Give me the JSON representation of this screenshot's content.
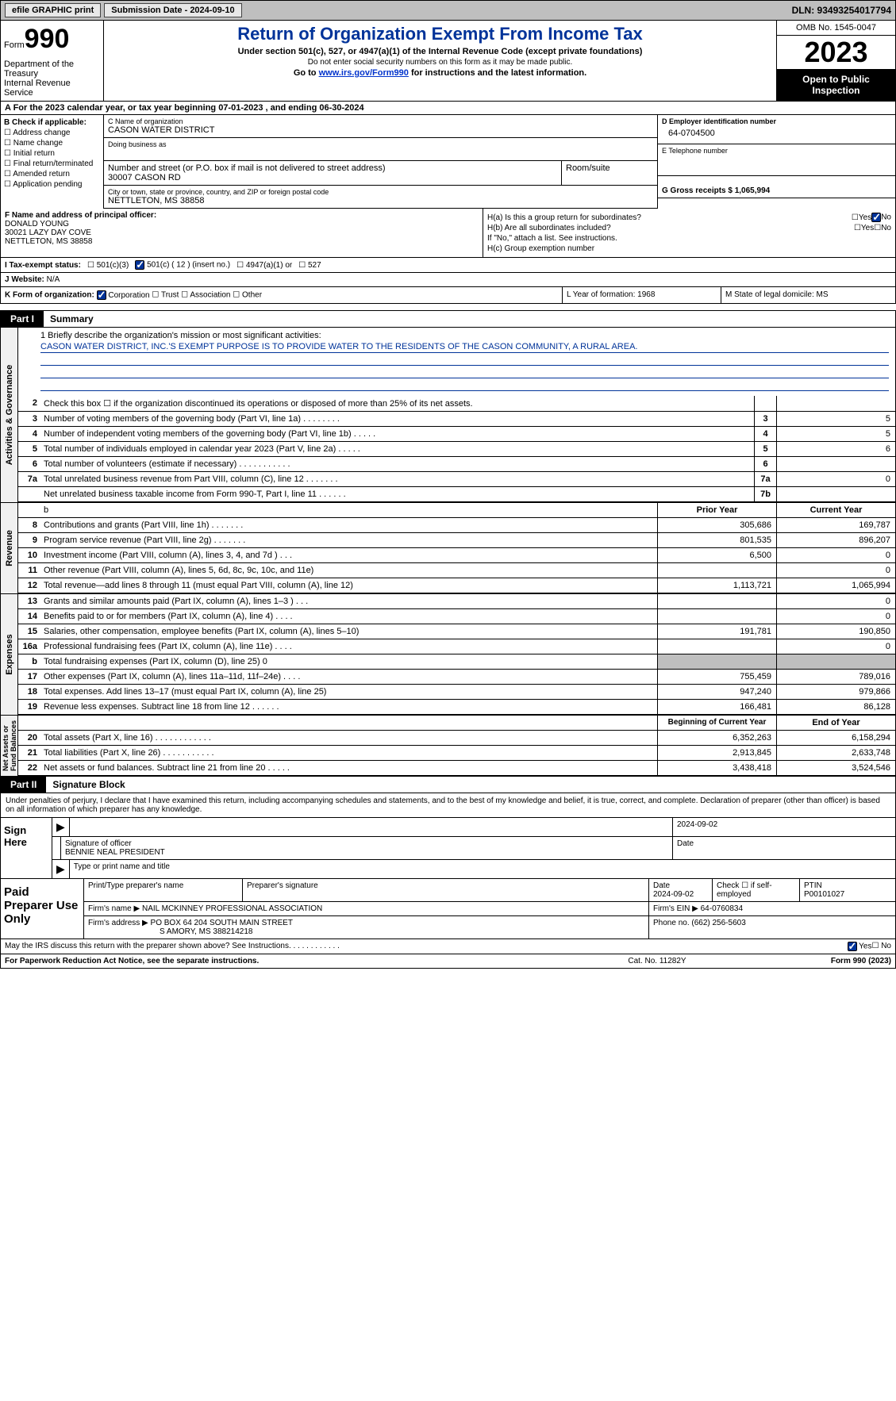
{
  "topbar": {
    "efile": "efile GRAPHIC print",
    "submission": "Submission Date - 2024-09-10",
    "dln": "DLN: 93493254017794"
  },
  "header": {
    "form_label": "Form",
    "form_num": "990",
    "dept": "Department of the Treasury\nInternal Revenue Service",
    "title": "Return of Organization Exempt From Income Tax",
    "sub1": "Under section 501(c), 527, or 4947(a)(1) of the Internal Revenue Code (except private foundations)",
    "sub2": "Do not enter social security numbers on this form as it may be made public.",
    "sub3_pre": "Go to ",
    "sub3_link": "www.irs.gov/Form990",
    "sub3_post": " for instructions and the latest information.",
    "omb": "OMB No. 1545-0047",
    "year": "2023",
    "inspect": "Open to Public Inspection"
  },
  "row_a": "A For the 2023 calendar year, or tax year beginning 07-01-2023    , and ending 06-30-2024",
  "box_b": {
    "label": "B Check if applicable:",
    "items": [
      "Address change",
      "Name change",
      "Initial return",
      "Final return/terminated",
      "Amended return",
      "Application pending"
    ]
  },
  "box_c": {
    "name_label": "C Name of organization",
    "name_val": "CASON WATER DISTRICT",
    "dba_label": "Doing business as",
    "street_label": "Number and street (or P.O. box if mail is not delivered to street address)",
    "street_val": "30007 CASON RD",
    "room_label": "Room/suite",
    "city_label": "City or town, state or province, country, and ZIP or foreign postal code",
    "city_val": "NETTLETON, MS  38858"
  },
  "box_d": {
    "label": "D Employer identification number",
    "val": "64-0704500"
  },
  "box_e": {
    "label": "E Telephone number",
    "val": ""
  },
  "box_g": {
    "label": "G Gross receipts $ 1,065,994"
  },
  "box_f": {
    "label": "F  Name and address of principal officer:",
    "val": "DONALD YOUNG\n30021 LAZY DAY COVE\nNETTLETON, MS  38858"
  },
  "box_h": {
    "ha": "H(a)  Is this a group return for subordinates?",
    "hb": "H(b)  Are all subordinates included?",
    "hb_note": "If \"No,\" attach a list. See instructions.",
    "hc": "H(c)  Group exemption number "
  },
  "row_i": {
    "label": "I  Tax-exempt status:",
    "opt1": "501(c)(3)",
    "opt2": "501(c) ( 12 ) (insert no.)",
    "opt3": "4947(a)(1) or",
    "opt4": "527"
  },
  "row_j": {
    "label": "J  Website: ",
    "val": "N/A"
  },
  "row_k": {
    "k": "K Form of organization:",
    "opts": [
      "Corporation",
      "Trust",
      "Association",
      "Other"
    ],
    "l": "L Year of formation: 1968",
    "m": "M State of legal domicile: MS"
  },
  "part1": {
    "tag": "Part I",
    "title": "Summary"
  },
  "mission": {
    "label": "1   Briefly describe the organization's mission or most significant activities:",
    "text": "CASON WATER DISTRICT, INC.'S EXEMPT PURPOSE IS TO PROVIDE WATER TO THE RESIDENTS OF THE CASON COMMUNITY, A RURAL AREA."
  },
  "gov_rows": [
    {
      "n": "2",
      "d": "Check this box  ☐  if the organization discontinued its operations or disposed of more than 25% of its net assets.",
      "cn": "",
      "v": ""
    },
    {
      "n": "3",
      "d": "Number of voting members of the governing body (Part VI, line 1a)   .    .    .    .    .    .    .    .",
      "cn": "3",
      "v": "5"
    },
    {
      "n": "4",
      "d": "Number of independent voting members of the governing body (Part VI, line 1b)   .    .    .    .    .",
      "cn": "4",
      "v": "5"
    },
    {
      "n": "5",
      "d": "Total number of individuals employed in calendar year 2023 (Part V, line 2a)   .    .    .    .    .",
      "cn": "5",
      "v": "6"
    },
    {
      "n": "6",
      "d": "Total number of volunteers (estimate if necessary)   .    .    .    .    .    .    .    .    .    .    .",
      "cn": "6",
      "v": ""
    },
    {
      "n": "7a",
      "d": "Total unrelated business revenue from Part VIII, column (C), line 12   .    .    .    .    .    .    .",
      "cn": "7a",
      "v": "0"
    },
    {
      "n": "",
      "d": "Net unrelated business taxable income from Form 990-T, Part I, line 11   .    .    .    .    .    .",
      "cn": "7b",
      "v": ""
    }
  ],
  "rev_hdr": {
    "c1": "Prior Year",
    "c2": "Current Year"
  },
  "rev_rows": [
    {
      "n": "8",
      "d": "Contributions and grants (Part VIII, line 1h)   .    .    .    .    .    .    .",
      "c1": "305,686",
      "c2": "169,787"
    },
    {
      "n": "9",
      "d": "Program service revenue (Part VIII, line 2g)   .    .    .    .    .    .    .",
      "c1": "801,535",
      "c2": "896,207"
    },
    {
      "n": "10",
      "d": "Investment income (Part VIII, column (A), lines 3, 4, and 7d )   .    .    .",
      "c1": "6,500",
      "c2": "0"
    },
    {
      "n": "11",
      "d": "Other revenue (Part VIII, column (A), lines 5, 6d, 8c, 9c, 10c, and 11e)",
      "c1": "",
      "c2": "0"
    },
    {
      "n": "12",
      "d": "Total revenue—add lines 8 through 11 (must equal Part VIII, column (A), line 12)",
      "c1": "1,113,721",
      "c2": "1,065,994"
    }
  ],
  "exp_rows": [
    {
      "n": "13",
      "d": "Grants and similar amounts paid (Part IX, column (A), lines 1–3 )   .    .    .",
      "c1": "",
      "c2": "0"
    },
    {
      "n": "14",
      "d": "Benefits paid to or for members (Part IX, column (A), line 4)   .    .    .    .",
      "c1": "",
      "c2": "0"
    },
    {
      "n": "15",
      "d": "Salaries, other compensation, employee benefits (Part IX, column (A), lines 5–10)",
      "c1": "191,781",
      "c2": "190,850"
    },
    {
      "n": "16a",
      "d": "Professional fundraising fees (Part IX, column (A), line 11e)   .    .    .    .",
      "c1": "",
      "c2": "0"
    },
    {
      "n": "b",
      "d": "Total fundraising expenses (Part IX, column (D), line 25) 0",
      "c1": "__GRAY__",
      "c2": "__GRAY__"
    },
    {
      "n": "17",
      "d": "Other expenses (Part IX, column (A), lines 11a–11d, 11f–24e)   .    .    .    .",
      "c1": "755,459",
      "c2": "789,016"
    },
    {
      "n": "18",
      "d": "Total expenses. Add lines 13–17 (must equal Part IX, column (A), line 25)",
      "c1": "947,240",
      "c2": "979,866"
    },
    {
      "n": "19",
      "d": "Revenue less expenses. Subtract line 18 from line 12   .    .    .    .    .    .",
      "c1": "166,481",
      "c2": "86,128"
    }
  ],
  "net_hdr": {
    "c1": "Beginning of Current Year",
    "c2": "End of Year"
  },
  "net_rows": [
    {
      "n": "20",
      "d": "Total assets (Part X, line 16)   .    .    .    .    .    .    .    .    .    .    .    .",
      "c1": "6,352,263",
      "c2": "6,158,294"
    },
    {
      "n": "21",
      "d": "Total liabilities (Part X, line 26)   .    .    .    .    .    .    .    .    .    .    .",
      "c1": "2,913,845",
      "c2": "2,633,748"
    },
    {
      "n": "22",
      "d": "Net assets or fund balances. Subtract line 21 from line 20   .    .    .    .    .",
      "c1": "3,438,418",
      "c2": "3,524,546"
    }
  ],
  "part2": {
    "tag": "Part II",
    "title": "Signature Block"
  },
  "sig_decl": "Under penalties of perjury, I declare that I have examined this return, including accompanying schedules and statements, and to the best of my knowledge and belief, it is true, correct, and complete. Declaration of preparer (other than officer) is based on all information of which preparer has any knowledge.",
  "sign": {
    "label": "Sign Here",
    "date": "2024-09-02",
    "sig_label": "Signature of officer",
    "name": "BENNIE NEAL PRESIDENT",
    "type_label": "Type or print name and title",
    "date_label": "Date"
  },
  "prep": {
    "label": "Paid Preparer Use Only",
    "h1": "Print/Type preparer's name",
    "h2": "Preparer's signature",
    "h3": "Date",
    "h3v": "2024-09-02",
    "h4": "Check ☐ if self-employed",
    "h5": "PTIN",
    "h5v": "P00101027",
    "firm_label": "Firm's name  ",
    "firm": "NAIL MCKINNEY PROFESSIONAL ASSOCIATION",
    "ein_label": "Firm's EIN ",
    "ein": "64-0760834",
    "addr_label": "Firm's address ",
    "addr1": "PO BOX 64 204 SOUTH MAIN STREET",
    "addr2": "S AMORY, MS  388214218",
    "phone_label": "Phone no. ",
    "phone": "(662) 256-5603"
  },
  "discuss": "May the IRS discuss this return with the preparer shown above? See Instructions.   .    .    .    .    .    .    .    .    .    .    .",
  "footer": {
    "f1": "For Paperwork Reduction Act Notice, see the separate instructions.",
    "f2": "Cat. No. 11282Y",
    "f3": "Form 990 (2023)"
  },
  "vtabs": {
    "gov": "Activities & Governance",
    "rev": "Revenue",
    "exp": "Expenses",
    "net": "Net Assets or\nFund Balances"
  }
}
